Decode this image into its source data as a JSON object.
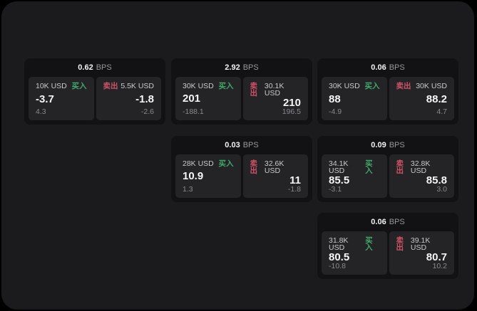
{
  "labels": {
    "buy": "买入",
    "sell": "卖出",
    "bps_unit": "BPS"
  },
  "colors": {
    "buy": "#3fa96b",
    "sell": "#cf5266",
    "window_bg": "#1b1b1d",
    "card_bg": "#121214",
    "tile_bg": "#242427"
  },
  "cards": [
    {
      "bps": "0.62",
      "row": 1,
      "col": 1,
      "buy": {
        "amount": "10K USD",
        "main": "-3.7",
        "sub": "4.3"
      },
      "sell": {
        "amount": "5.5K USD",
        "main": "-1.8",
        "sub": "-2.6"
      }
    },
    {
      "bps": "2.92",
      "row": 1,
      "col": 2,
      "buy": {
        "amount": "30K USD",
        "main": "201",
        "sub": "-188.1"
      },
      "sell": {
        "amount": "30.1K USD",
        "main": "210",
        "sub": "196.5"
      }
    },
    {
      "bps": "0.06",
      "row": 1,
      "col": 3,
      "buy": {
        "amount": "30K USD",
        "main": "88",
        "sub": "-4.9"
      },
      "sell": {
        "amount": "30K USD",
        "main": "88.2",
        "sub": "4.7"
      }
    },
    {
      "bps": "0.03",
      "row": 2,
      "col": 2,
      "buy": {
        "amount": "28K USD",
        "main": "10.9",
        "sub": "1.3"
      },
      "sell": {
        "amount": "32.6K USD",
        "main": "11",
        "sub": "-1.8"
      }
    },
    {
      "bps": "0.09",
      "row": 2,
      "col": 3,
      "buy": {
        "amount": "34.1K USD",
        "main": "85.5",
        "sub": "-3.1"
      },
      "sell": {
        "amount": "32.8K USD",
        "main": "85.8",
        "sub": "3.0"
      }
    },
    {
      "bps": "0.06",
      "row": 3,
      "col": 3,
      "buy": {
        "amount": "31.8K USD",
        "main": "80.5",
        "sub": "-10.8"
      },
      "sell": {
        "amount": "39.1K USD",
        "main": "80.7",
        "sub": "10.2"
      }
    }
  ]
}
